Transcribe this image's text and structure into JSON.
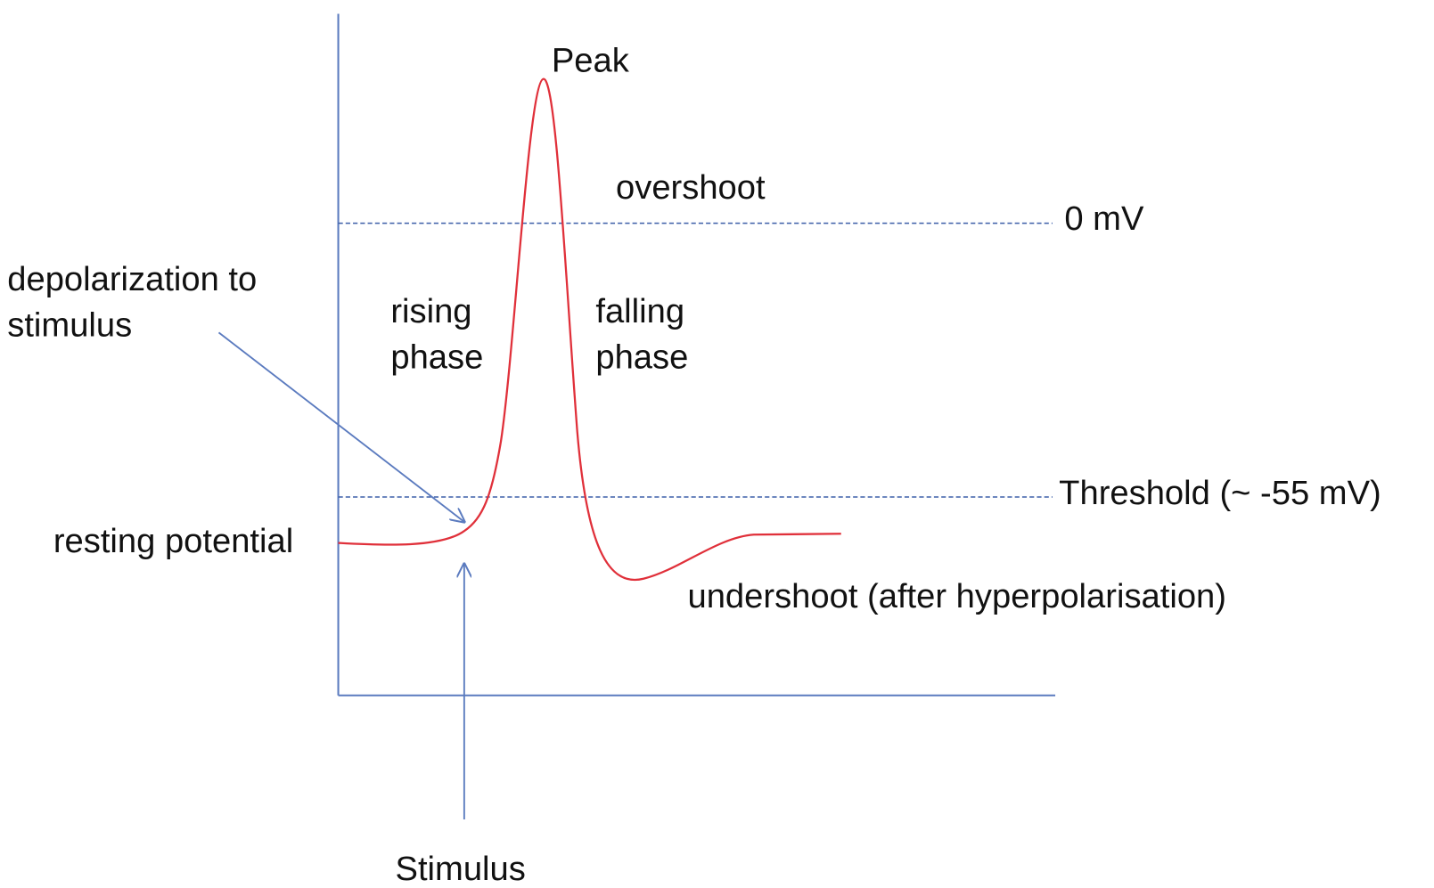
{
  "labels": {
    "peak": "Peak",
    "overshoot": "overshoot",
    "zero": "0 mV",
    "depolarization": [
      "depolarization to",
      "stimulus"
    ],
    "rising": [
      "rising",
      "phase"
    ],
    "falling": [
      "falling",
      "phase"
    ],
    "threshold": "Threshold (~ -55 mV)",
    "resting": "resting potential",
    "undershoot": "undershoot (after hyperpolarisation)",
    "stimulus": "Stimulus"
  }
}
